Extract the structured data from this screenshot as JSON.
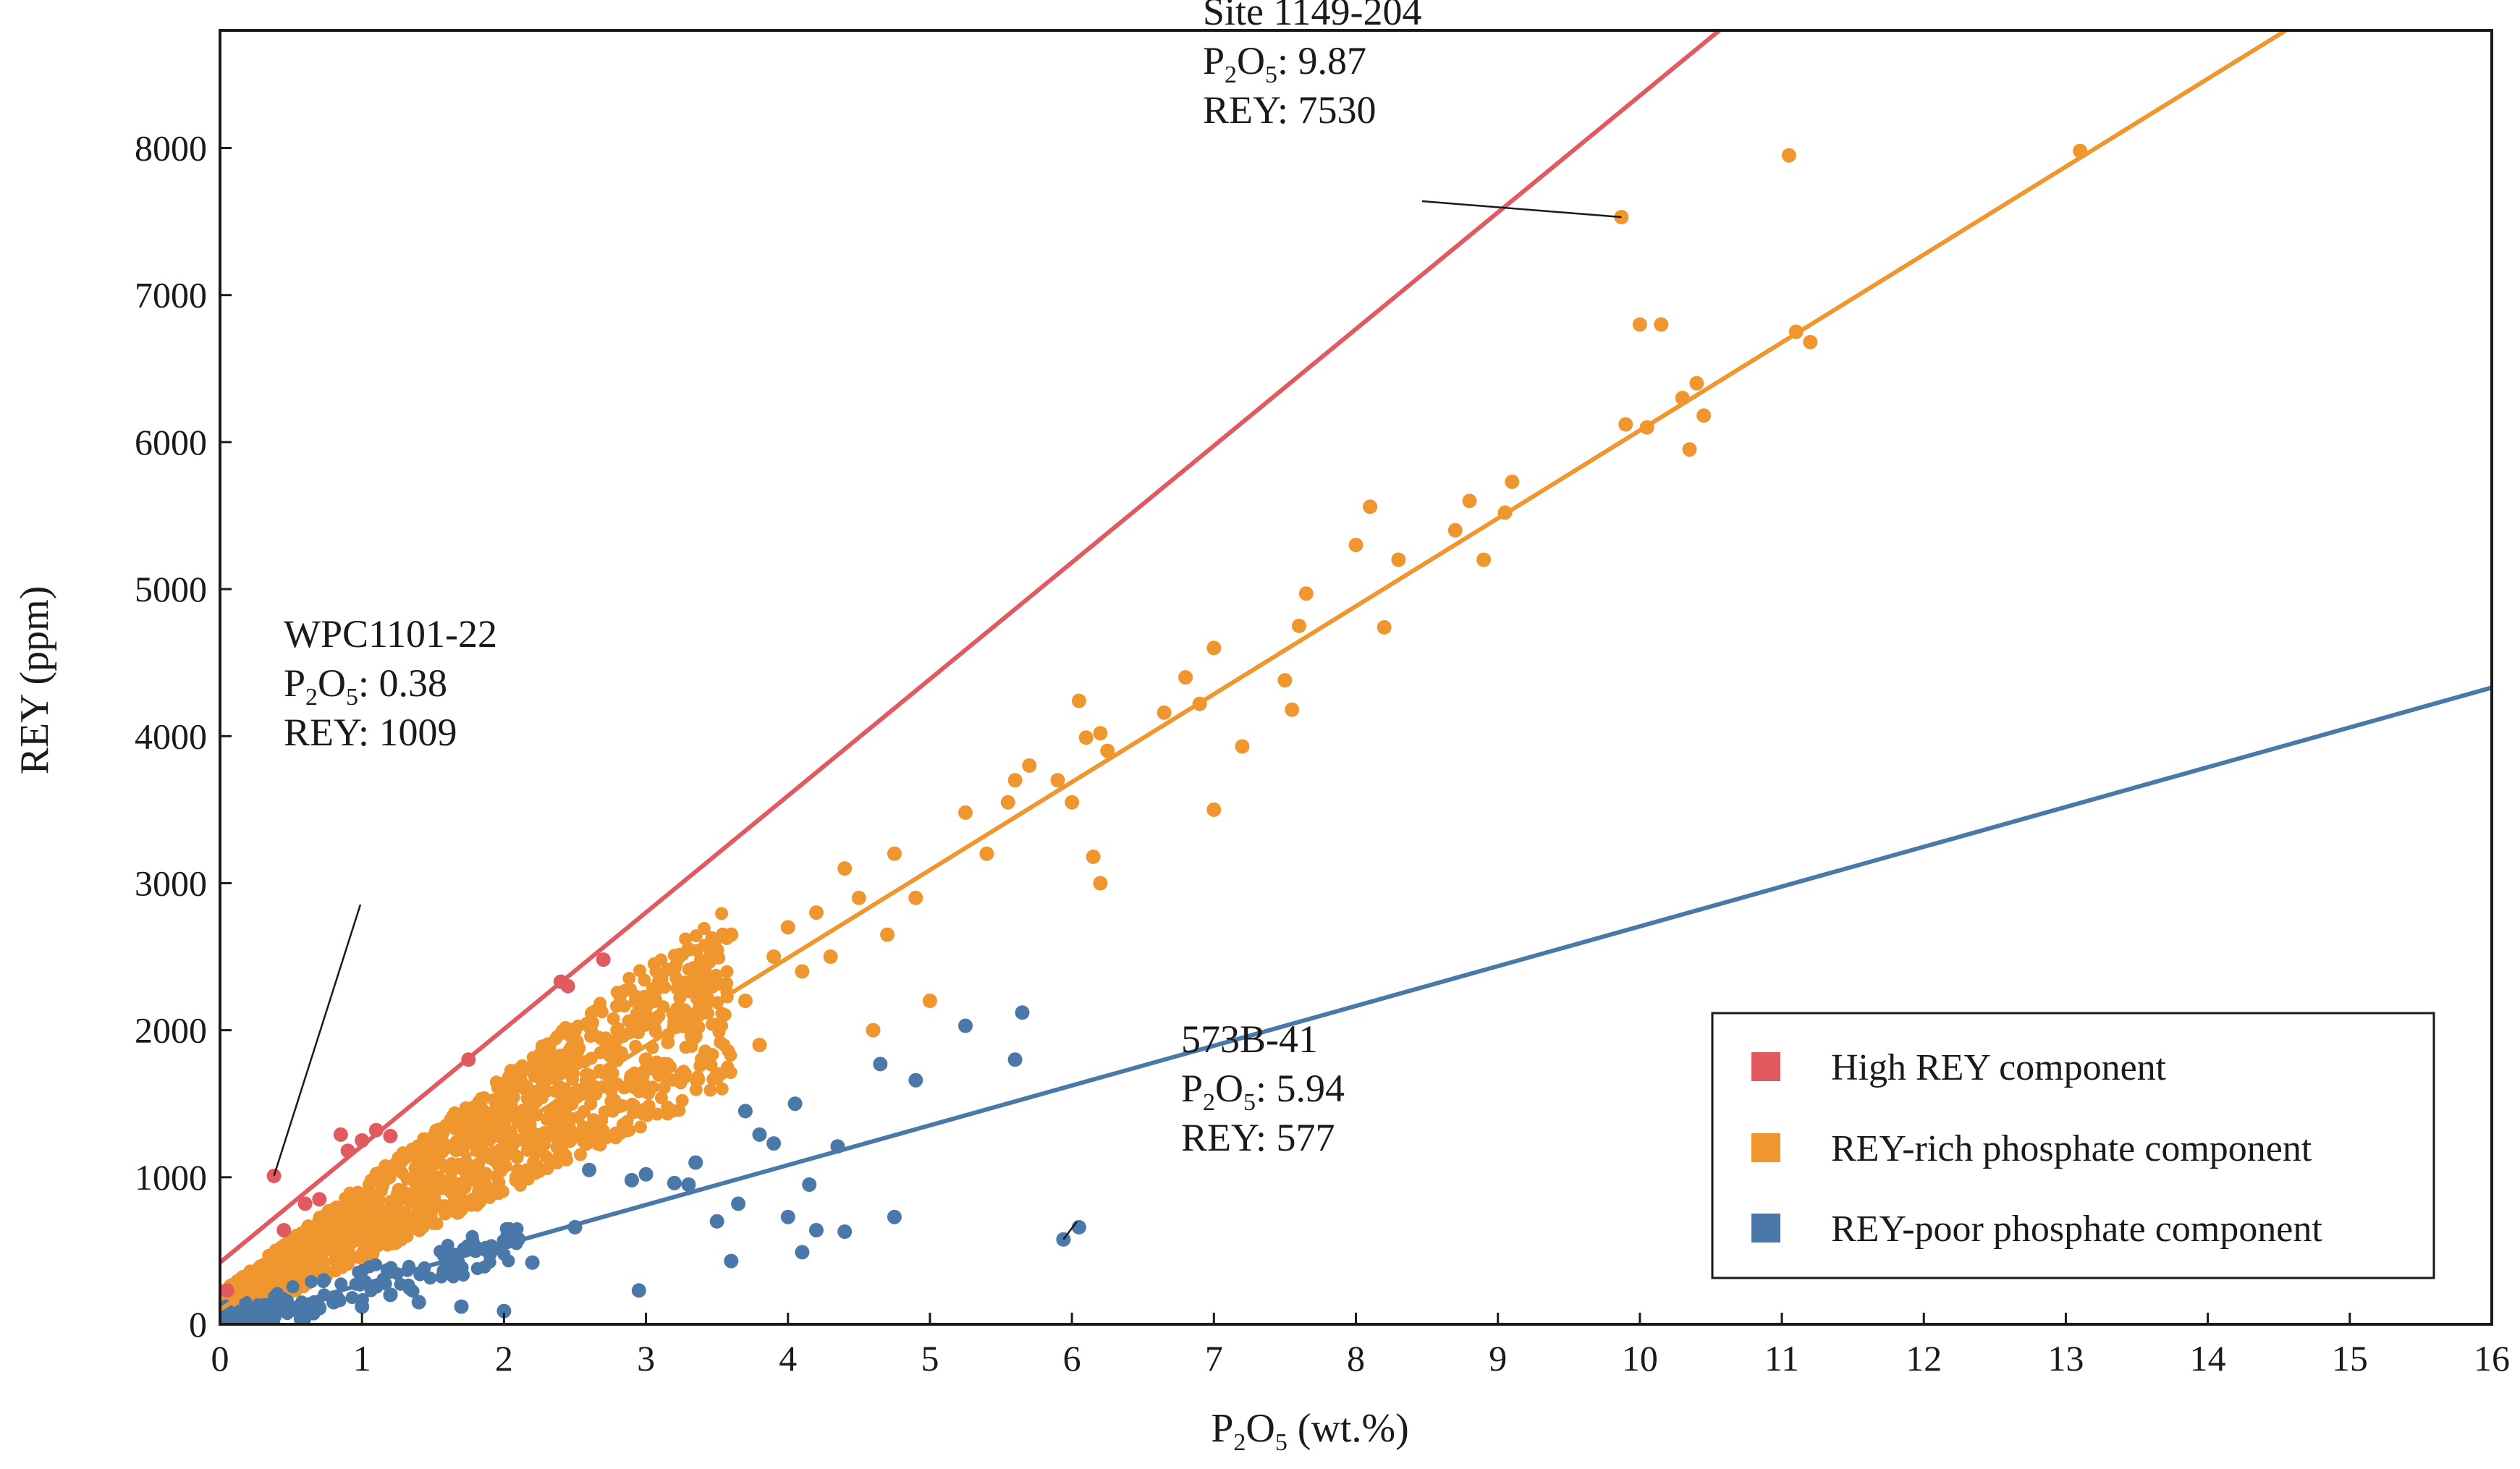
{
  "chart_data": {
    "type": "scatter",
    "xlabel": "P₂O₅ (wt.%)",
    "ylabel": "REY (ppm)",
    "xlim": [
      0,
      16
    ],
    "ylim": [
      0,
      8800
    ],
    "x_ticks": [
      0,
      1,
      2,
      3,
      4,
      5,
      6,
      7,
      8,
      9,
      10,
      11,
      12,
      13,
      14,
      15,
      16
    ],
    "y_ticks": [
      0,
      1000,
      2000,
      3000,
      4000,
      5000,
      6000,
      7000,
      8000
    ],
    "grid": false,
    "legend_position": "bottom-right",
    "series": [
      {
        "name": "High REY component",
        "color": "#e05a5f",
        "regression": {
          "x0": 0,
          "y0": 420,
          "x1": 10.56,
          "y1": 8800
        },
        "points": [
          [
            0.05,
            230
          ],
          [
            0.38,
            1009
          ],
          [
            0.45,
            640
          ],
          [
            0.6,
            820
          ],
          [
            0.7,
            850
          ],
          [
            0.85,
            1290
          ],
          [
            0.9,
            1180
          ],
          [
            1.0,
            1250
          ],
          [
            1.1,
            1320
          ],
          [
            1.2,
            1280
          ],
          [
            1.75,
            1800
          ],
          [
            2.4,
            2330
          ],
          [
            2.45,
            2300
          ],
          [
            2.7,
            2480
          ]
        ]
      },
      {
        "name": "REY-rich phosphate component",
        "color": "#f0962f",
        "regression": {
          "x0": 0,
          "y0": 100,
          "x1": 14.55,
          "y1": 8800
        },
        "points": [
          [
            1.2,
            1050
          ],
          [
            1.5,
            1250
          ],
          [
            1.8,
            1450
          ],
          [
            2.0,
            1600
          ],
          [
            2.2,
            1750
          ],
          [
            2.5,
            1850
          ],
          [
            2.8,
            2000
          ],
          [
            3.0,
            1800
          ],
          [
            3.2,
            2100
          ],
          [
            3.3,
            2550
          ],
          [
            3.4,
            2300
          ],
          [
            3.5,
            1700
          ],
          [
            3.6,
            2650
          ],
          [
            3.7,
            2200
          ],
          [
            3.8,
            1900
          ],
          [
            3.9,
            2500
          ],
          [
            4.0,
            2700
          ],
          [
            4.1,
            2400
          ],
          [
            4.2,
            2800
          ],
          [
            4.3,
            2500
          ],
          [
            4.4,
            3100
          ],
          [
            4.5,
            2900
          ],
          [
            4.6,
            2000
          ],
          [
            4.7,
            2650
          ],
          [
            4.75,
            3200
          ],
          [
            4.9,
            2900
          ],
          [
            5.0,
            2200
          ],
          [
            5.25,
            3480
          ],
          [
            5.4,
            3200
          ],
          [
            5.55,
            3550
          ],
          [
            5.6,
            3700
          ],
          [
            5.7,
            3800
          ],
          [
            5.9,
            3700
          ],
          [
            6.0,
            3550
          ],
          [
            6.05,
            4240
          ],
          [
            6.1,
            3990
          ],
          [
            6.2,
            4020
          ],
          [
            6.25,
            3900
          ],
          [
            6.15,
            3180
          ],
          [
            6.2,
            3000
          ],
          [
            6.65,
            4160
          ],
          [
            6.8,
            4400
          ],
          [
            6.9,
            4220
          ],
          [
            7.0,
            4600
          ],
          [
            7.0,
            3500
          ],
          [
            7.2,
            3930
          ],
          [
            7.5,
            4380
          ],
          [
            7.6,
            4750
          ],
          [
            7.65,
            4970
          ],
          [
            7.55,
            4180
          ],
          [
            8.0,
            5300
          ],
          [
            8.1,
            5560
          ],
          [
            8.2,
            4740
          ],
          [
            8.3,
            5200
          ],
          [
            8.7,
            5400
          ],
          [
            8.8,
            5600
          ],
          [
            8.9,
            5200
          ],
          [
            9.05,
            5520
          ],
          [
            9.1,
            5730
          ],
          [
            9.87,
            7530
          ],
          [
            9.9,
            6120
          ],
          [
            10.0,
            6800
          ],
          [
            10.05,
            6100
          ],
          [
            10.15,
            6800
          ],
          [
            10.3,
            6300
          ],
          [
            10.35,
            5950
          ],
          [
            10.4,
            6400
          ],
          [
            10.45,
            6180
          ],
          [
            11.05,
            7950
          ],
          [
            11.1,
            6750
          ],
          [
            11.2,
            6680
          ],
          [
            13.1,
            7980
          ]
        ]
      },
      {
        "name": "REY-poor phosphate component",
        "color": "#4a78a8",
        "regression": {
          "x0": 0,
          "y0": 0,
          "x1": 16,
          "y1": 4330
        },
        "points": [
          [
            0.3,
            80
          ],
          [
            0.5,
            100
          ],
          [
            0.7,
            110
          ],
          [
            0.8,
            150
          ],
          [
            1.0,
            120
          ],
          [
            1.2,
            200
          ],
          [
            1.4,
            150
          ],
          [
            1.7,
            120
          ],
          [
            1.8,
            500
          ],
          [
            1.9,
            480
          ],
          [
            2.0,
            90
          ],
          [
            2.1,
            580
          ],
          [
            2.2,
            420
          ],
          [
            2.5,
            660
          ],
          [
            2.6,
            1050
          ],
          [
            2.9,
            980
          ],
          [
            2.95,
            230
          ],
          [
            3.0,
            1020
          ],
          [
            3.2,
            960
          ],
          [
            3.3,
            950
          ],
          [
            3.35,
            1100
          ],
          [
            3.5,
            700
          ],
          [
            3.6,
            430
          ],
          [
            3.65,
            820
          ],
          [
            3.7,
            1450
          ],
          [
            3.8,
            1290
          ],
          [
            3.9,
            1230
          ],
          [
            4.0,
            730
          ],
          [
            4.05,
            1500
          ],
          [
            4.1,
            490
          ],
          [
            4.15,
            950
          ],
          [
            4.2,
            640
          ],
          [
            4.35,
            1210
          ],
          [
            4.4,
            630
          ],
          [
            4.65,
            1770
          ],
          [
            4.75,
            730
          ],
          [
            4.9,
            1660
          ],
          [
            5.25,
            2030
          ],
          [
            5.6,
            1800
          ],
          [
            5.65,
            2120
          ],
          [
            5.94,
            577
          ],
          [
            6.05,
            660
          ]
        ]
      }
    ],
    "annotations": [
      {
        "lines": [
          "WPC1101-22",
          "P₂O₅: 0.38",
          "REY: 1009"
        ],
        "x": 0.38,
        "y": 1009
      },
      {
        "lines": [
          "Site 1149-204",
          "P₂O₅: 9.87",
          "REY: 7530"
        ],
        "x": 9.87,
        "y": 7530
      },
      {
        "lines": [
          "573B-41",
          "P₂O₅: 5.94",
          "REY: 577"
        ],
        "x": 5.94,
        "y": 577
      }
    ]
  }
}
